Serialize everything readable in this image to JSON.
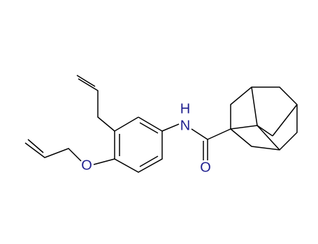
{
  "atoms": [
    {
      "label": "N",
      "color": "#1f1f8f"
    },
    {
      "label": "H",
      "color": "#1f1f8f"
    },
    {
      "label": "O",
      "color": "#1f1f8f"
    },
    {
      "label": "O",
      "color": "#1f1f8f"
    }
  ]
}
